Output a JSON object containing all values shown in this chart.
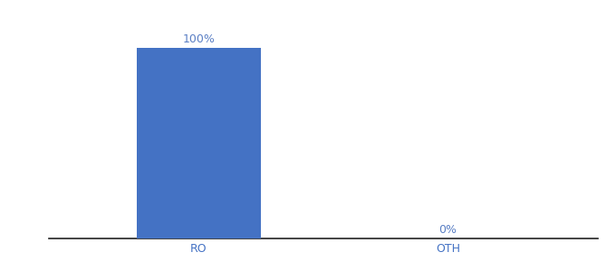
{
  "categories": [
    "RO",
    "OTH"
  ],
  "values": [
    100,
    0
  ],
  "bar_color": "#4472c4",
  "label_color": "#5a7fc4",
  "label_fontsize": 9,
  "tick_label_fontsize": 9,
  "tick_label_color": "#4472c4",
  "bar_width": 0.5,
  "ylim": [
    0,
    115
  ],
  "background_color": "#ffffff",
  "axis_line_color": "#222222",
  "xlim": [
    -0.6,
    1.6
  ]
}
